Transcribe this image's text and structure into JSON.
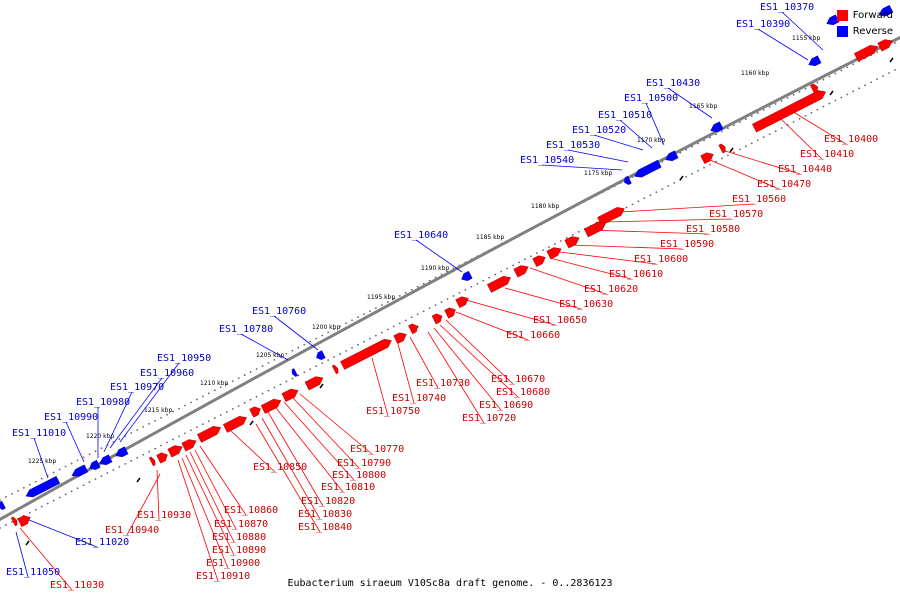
{
  "legend": {
    "forward_label": "Forward",
    "reverse_label": "Reverse",
    "forward_color": "#ff0000",
    "reverse_color": "#0000ff"
  },
  "caption": "Eubacterium siraeum V10Sc8a draft genome. - 0..2836123",
  "colors": {
    "backbone": "#808080",
    "tick": "#000000",
    "forward_gene": "#ff0000",
    "reverse_gene": "#0000ff",
    "forward_text": "#cc0000",
    "reverse_text": "#0000cc"
  },
  "scale_labels": [
    "1155 kbp",
    "1160 kbp",
    "1165 kbp",
    "1170 kbp",
    "1175 kbp",
    "1180 kbp",
    "1185 kbp",
    "1190 kbp",
    "1195 kbp",
    "1200 kbp",
    "1205 kbp",
    "1210 kbp",
    "1215 kbp",
    "1220 kbp",
    "1225 kbp"
  ],
  "genes": {
    "reverse": [
      "ES1_10370",
      "ES1_10390",
      "ES1_10430",
      "ES1_10500",
      "ES1_10510",
      "ES1_10520",
      "ES1_10530",
      "ES1_10540",
      "ES1_10640",
      "ES1_10760",
      "ES1_10780",
      "ES1_10950",
      "ES1_10960",
      "ES1_10970",
      "ES1_10980",
      "ES1_10990",
      "ES1_11010",
      "ES1_11020",
      "ES1_11050"
    ],
    "forward": [
      "ES1_10400",
      "ES1_10410",
      "ES1_10440",
      "ES1_10470",
      "ES1_10560",
      "ES1_10570",
      "ES1_10580",
      "ES1_10590",
      "ES1_10600",
      "ES1_10610",
      "ES1_10620",
      "ES1_10630",
      "ES1_10650",
      "ES1_10660",
      "ES1_10670",
      "ES1_10680",
      "ES1_10690",
      "ES1_10720",
      "ES1_10730",
      "ES1_10740",
      "ES1_10750",
      "ES1_10770",
      "ES1_10790",
      "ES1_10800",
      "ES1_10810",
      "ES1_10820",
      "ES1_10830",
      "ES1_10840",
      "ES1_10850",
      "ES1_10860",
      "ES1_10870",
      "ES1_10880",
      "ES1_10890",
      "ES1_10900",
      "ES1_10910",
      "ES1_10930",
      "ES1_10940",
      "ES1_11030"
    ]
  }
}
